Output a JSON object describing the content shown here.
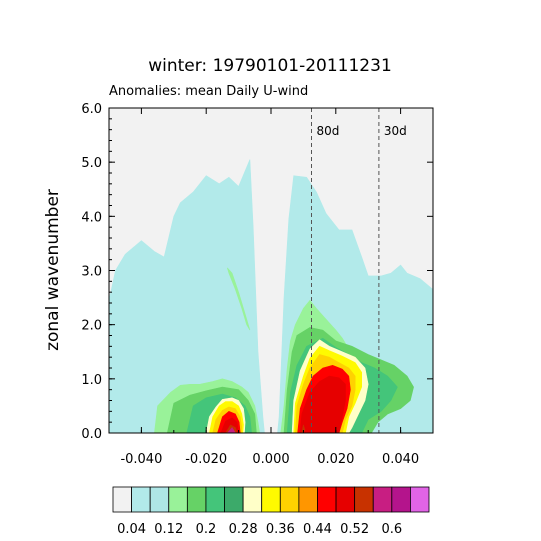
{
  "chart_data": {
    "type": "heatmap",
    "title": "winter: 19790101-20111231",
    "subtitle": "Anomalies: mean Daily U-wind",
    "xlabel": "",
    "ylabel": "zonal wavenumber",
    "xlim": [
      -0.05,
      0.05
    ],
    "ylim": [
      0.0,
      6.0
    ],
    "x_ticks": [
      -0.04,
      -0.02,
      0.0,
      0.02,
      0.04
    ],
    "x_tick_labels": [
      "-0.040",
      "-0.020",
      "0.000",
      "0.020",
      "0.040"
    ],
    "y_ticks": [
      0,
      1,
      2,
      3,
      4,
      5,
      6
    ],
    "y_tick_labels": [
      "0.0",
      "1.0",
      "2.0",
      "3.0",
      "4.0",
      "5.0",
      "6.0"
    ],
    "reference_lines": [
      {
        "label": "80d",
        "x": 0.0125
      },
      {
        "label": "30d",
        "x": 0.0333
      }
    ],
    "colorbar": {
      "labels": [
        "0.04",
        "0.12",
        "0.2",
        "0.28",
        "0.36",
        "0.44",
        "0.52",
        "0.6"
      ],
      "label_levels": [
        0.04,
        0.12,
        0.2,
        0.28,
        0.36,
        0.44,
        0.52,
        0.6
      ],
      "levels": [
        0.04,
        0.08,
        0.12,
        0.16,
        0.2,
        0.24,
        0.28,
        0.32,
        0.36,
        0.4,
        0.44,
        0.48,
        0.52,
        0.56,
        0.6
      ],
      "colors": [
        "#f2f2f2",
        "#b2eaea",
        "#aee6e6",
        "#99f299",
        "#66d266",
        "#44c57a",
        "#3caa6a",
        "#ffffc8",
        "#fffa00",
        "#ffd200",
        "#ff9600",
        "#ff0000",
        "#e60000",
        "#c83200",
        "#c81e82",
        "#b4148c",
        "#e164e6"
      ]
    },
    "contours": [
      {
        "level_index": 1,
        "polygons": [
          [
            [
              -0.05,
              0
            ],
            [
              -0.05,
              2.45
            ],
            [
              -0.048,
              3.0
            ],
            [
              -0.045,
              3.3
            ],
            [
              -0.04,
              3.55
            ],
            [
              -0.036,
              3.35
            ],
            [
              -0.033,
              3.25
            ],
            [
              -0.03,
              4.0
            ],
            [
              -0.028,
              4.25
            ],
            [
              -0.024,
              4.45
            ],
            [
              -0.02,
              4.75
            ],
            [
              -0.016,
              4.6
            ],
            [
              -0.013,
              4.72
            ],
            [
              -0.01,
              4.55
            ],
            [
              -0.0065,
              5.05
            ],
            [
              -0.0055,
              3.8
            ],
            [
              -0.004,
              1.5
            ],
            [
              -0.0025,
              0.3
            ],
            [
              -0.002,
              0
            ],
            [
              0.002,
              0
            ],
            [
              0.0025,
              0.3
            ],
            [
              0.004,
              2.5
            ],
            [
              0.0055,
              3.95
            ],
            [
              0.007,
              4.75
            ],
            [
              0.011,
              4.72
            ],
            [
              0.014,
              4.45
            ],
            [
              0.017,
              4.05
            ],
            [
              0.021,
              3.75
            ],
            [
              0.025,
              3.75
            ],
            [
              0.028,
              3.25
            ],
            [
              0.03,
              2.9
            ],
            [
              0.034,
              2.9
            ],
            [
              0.037,
              2.95
            ],
            [
              0.04,
              3.1
            ],
            [
              0.042,
              2.95
            ],
            [
              0.046,
              2.85
            ],
            [
              0.05,
              2.65
            ],
            [
              0.05,
              0
            ]
          ]
        ]
      },
      {
        "level_index": 3,
        "polygons": [
          [
            [
              -0.036,
              0
            ],
            [
              -0.035,
              0.5
            ],
            [
              -0.031,
              0.75
            ],
            [
              -0.028,
              0.88
            ],
            [
              -0.025,
              0.9
            ],
            [
              -0.022,
              0.9
            ],
            [
              -0.018,
              0.95
            ],
            [
              -0.015,
              1.0
            ],
            [
              -0.012,
              0.95
            ],
            [
              -0.009,
              0.85
            ],
            [
              -0.007,
              0.75
            ],
            [
              -0.005,
              0.5
            ],
            [
              -0.004,
              0.2
            ],
            [
              -0.0035,
              0
            ]
          ],
          [
            [
              0.003,
              0
            ],
            [
              0.004,
              0.5
            ],
            [
              0.005,
              1.2
            ],
            [
              0.006,
              1.7
            ],
            [
              0.0075,
              2.0
            ],
            [
              0.01,
              2.3
            ],
            [
              0.012,
              2.45
            ],
            [
              0.014,
              2.3
            ],
            [
              0.017,
              2.1
            ],
            [
              0.02,
              1.9
            ],
            [
              0.022,
              1.75
            ],
            [
              0.024,
              1.55
            ],
            [
              0.027,
              1.42
            ],
            [
              0.03,
              1.1
            ],
            [
              0.031,
              0.85
            ],
            [
              0.031,
              0.5
            ],
            [
              0.031,
              0
            ]
          ],
          [
            [
              -0.0135,
              3.05
            ],
            [
              -0.012,
              2.95
            ],
            [
              -0.01,
              2.6
            ],
            [
              -0.008,
              2.2
            ],
            [
              -0.0065,
              1.9
            ],
            [
              -0.0075,
              2.0
            ],
            [
              -0.009,
              2.3
            ],
            [
              -0.011,
              2.65
            ],
            [
              -0.013,
              2.95
            ]
          ]
        ]
      },
      {
        "level_index": 4,
        "polygons": [
          [
            [
              -0.032,
              0
            ],
            [
              -0.03,
              0.55
            ],
            [
              -0.025,
              0.7
            ],
            [
              -0.02,
              0.78
            ],
            [
              -0.015,
              0.85
            ],
            [
              -0.01,
              0.8
            ],
            [
              -0.007,
              0.6
            ],
            [
              -0.005,
              0.35
            ],
            [
              -0.0045,
              0
            ]
          ],
          [
            [
              0.004,
              0
            ],
            [
              0.005,
              0.8
            ],
            [
              0.0065,
              1.5
            ],
            [
              0.008,
              1.8
            ],
            [
              0.012,
              1.95
            ],
            [
              0.016,
              1.9
            ],
            [
              0.02,
              1.7
            ],
            [
              0.025,
              1.6
            ],
            [
              0.03,
              1.45
            ],
            [
              0.034,
              1.35
            ],
            [
              0.038,
              1.25
            ],
            [
              0.042,
              1.05
            ],
            [
              0.044,
              0.85
            ],
            [
              0.043,
              0.6
            ],
            [
              0.04,
              0.45
            ],
            [
              0.036,
              0.35
            ],
            [
              0.033,
              0.2
            ],
            [
              0.031,
              0
            ]
          ]
        ]
      },
      {
        "level_index": 5,
        "polygons": [
          [
            [
              -0.026,
              0
            ],
            [
              -0.024,
              0.5
            ],
            [
              -0.02,
              0.65
            ],
            [
              -0.015,
              0.72
            ],
            [
              -0.011,
              0.65
            ],
            [
              -0.008,
              0.5
            ],
            [
              -0.0065,
              0.3
            ],
            [
              -0.006,
              0
            ]
          ],
          [
            [
              0.005,
              0
            ],
            [
              0.006,
              0.75
            ],
            [
              0.008,
              1.25
            ],
            [
              0.011,
              1.6
            ],
            [
              0.016,
              1.75
            ],
            [
              0.02,
              1.58
            ],
            [
              0.024,
              1.45
            ],
            [
              0.028,
              1.3
            ],
            [
              0.032,
              1.2
            ],
            [
              0.036,
              1.05
            ],
            [
              0.039,
              0.85
            ],
            [
              0.037,
              0.6
            ],
            [
              0.034,
              0.4
            ],
            [
              0.03,
              0.25
            ],
            [
              0.028,
              0
            ]
          ]
        ]
      },
      {
        "level_index": 7,
        "polygons": [
          [
            [
              -0.02,
              0
            ],
            [
              -0.019,
              0.3
            ],
            [
              -0.017,
              0.48
            ],
            [
              -0.015,
              0.62
            ],
            [
              -0.012,
              0.65
            ],
            [
              -0.01,
              0.6
            ],
            [
              -0.0085,
              0.45
            ],
            [
              -0.008,
              0.2
            ],
            [
              -0.0082,
              0
            ]
          ],
          [
            [
              0.0065,
              0
            ],
            [
              0.007,
              0.6
            ],
            [
              0.009,
              1.15
            ],
            [
              0.012,
              1.55
            ],
            [
              0.015,
              1.72
            ],
            [
              0.018,
              1.6
            ],
            [
              0.022,
              1.5
            ],
            [
              0.026,
              1.4
            ],
            [
              0.029,
              1.2
            ],
            [
              0.03,
              0.9
            ],
            [
              0.029,
              0.6
            ],
            [
              0.027,
              0.35
            ],
            [
              0.025,
              0.1
            ],
            [
              0.024,
              0
            ]
          ]
        ]
      },
      {
        "level_index": 8,
        "polygons": [
          [
            [
              -0.019,
              0
            ],
            [
              -0.018,
              0.3
            ],
            [
              -0.016,
              0.5
            ],
            [
              -0.014,
              0.58
            ],
            [
              -0.012,
              0.58
            ],
            [
              -0.01,
              0.5
            ],
            [
              -0.009,
              0.35
            ],
            [
              -0.0085,
              0.15
            ],
            [
              -0.0087,
              0
            ]
          ],
          [
            [
              0.007,
              0
            ],
            [
              0.0075,
              0.55
            ],
            [
              0.01,
              1.05
            ],
            [
              0.012,
              1.38
            ],
            [
              0.015,
              1.6
            ],
            [
              0.018,
              1.52
            ],
            [
              0.022,
              1.42
            ],
            [
              0.026,
              1.3
            ],
            [
              0.028,
              1.12
            ],
            [
              0.028,
              0.85
            ],
            [
              0.026,
              0.55
            ],
            [
              0.024,
              0.3
            ],
            [
              0.023,
              0
            ]
          ]
        ]
      },
      {
        "level_index": 9,
        "polygons": [
          [
            [
              -0.018,
              0
            ],
            [
              -0.017,
              0.25
            ],
            [
              -0.015,
              0.42
            ],
            [
              -0.013,
              0.48
            ],
            [
              -0.011,
              0.45
            ],
            [
              -0.0095,
              0.3
            ],
            [
              -0.009,
              0.1
            ],
            [
              -0.0092,
              0
            ]
          ],
          [
            [
              0.0075,
              0
            ],
            [
              0.008,
              0.5
            ],
            [
              0.01,
              0.9
            ],
            [
              0.012,
              1.2
            ],
            [
              0.015,
              1.45
            ],
            [
              0.018,
              1.4
            ],
            [
              0.021,
              1.3
            ],
            [
              0.024,
              1.2
            ],
            [
              0.026,
              1.05
            ],
            [
              0.026,
              0.8
            ],
            [
              0.025,
              0.5
            ],
            [
              0.023,
              0.25
            ],
            [
              0.022,
              0
            ]
          ]
        ]
      },
      {
        "level_index": 11,
        "polygons": [
          [
            [
              -0.0165,
              0
            ],
            [
              -0.015,
              0.3
            ],
            [
              -0.013,
              0.4
            ],
            [
              -0.011,
              0.35
            ],
            [
              -0.0098,
              0.2
            ],
            [
              -0.0095,
              0
            ]
          ],
          [
            [
              0.0082,
              0
            ],
            [
              0.009,
              0.45
            ],
            [
              0.011,
              0.8
            ],
            [
              0.013,
              1.05
            ],
            [
              0.016,
              1.2
            ],
            [
              0.019,
              1.25
            ],
            [
              0.022,
              1.18
            ],
            [
              0.024,
              1.05
            ],
            [
              0.0245,
              0.8
            ],
            [
              0.0235,
              0.45
            ],
            [
              0.022,
              0.2
            ],
            [
              0.021,
              0
            ]
          ]
        ]
      },
      {
        "level_index": 12,
        "polygons": [
          [
            [
              -0.0155,
              0
            ],
            [
              -0.014,
              0.22
            ],
            [
              -0.012,
              0.28
            ],
            [
              -0.0105,
              0.2
            ],
            [
              -0.01,
              0
            ]
          ],
          [
            [
              0.009,
              0
            ],
            [
              0.0095,
              0.35
            ],
            [
              0.012,
              0.75
            ],
            [
              0.015,
              0.95
            ],
            [
              0.018,
              1.05
            ],
            [
              0.021,
              1.02
            ],
            [
              0.023,
              0.9
            ],
            [
              0.023,
              0.6
            ],
            [
              0.022,
              0.3
            ],
            [
              0.021,
              0
            ]
          ]
        ]
      },
      {
        "level_index": 13,
        "polygons": [
          [
            [
              -0.014,
              0
            ],
            [
              -0.0125,
              0.15
            ],
            [
              -0.011,
              0.1
            ],
            [
              -0.0105,
              0
            ]
          ],
          [
            [
              0.0095,
              0
            ],
            [
              0.01,
              0.15
            ],
            [
              0.0105,
              0.05
            ]
          ]
        ]
      },
      {
        "level_index": 14,
        "polygons": [
          [
            [
              -0.0135,
              0
            ],
            [
              -0.012,
              0.1
            ],
            [
              -0.011,
              0
            ]
          ]
        ]
      }
    ]
  }
}
